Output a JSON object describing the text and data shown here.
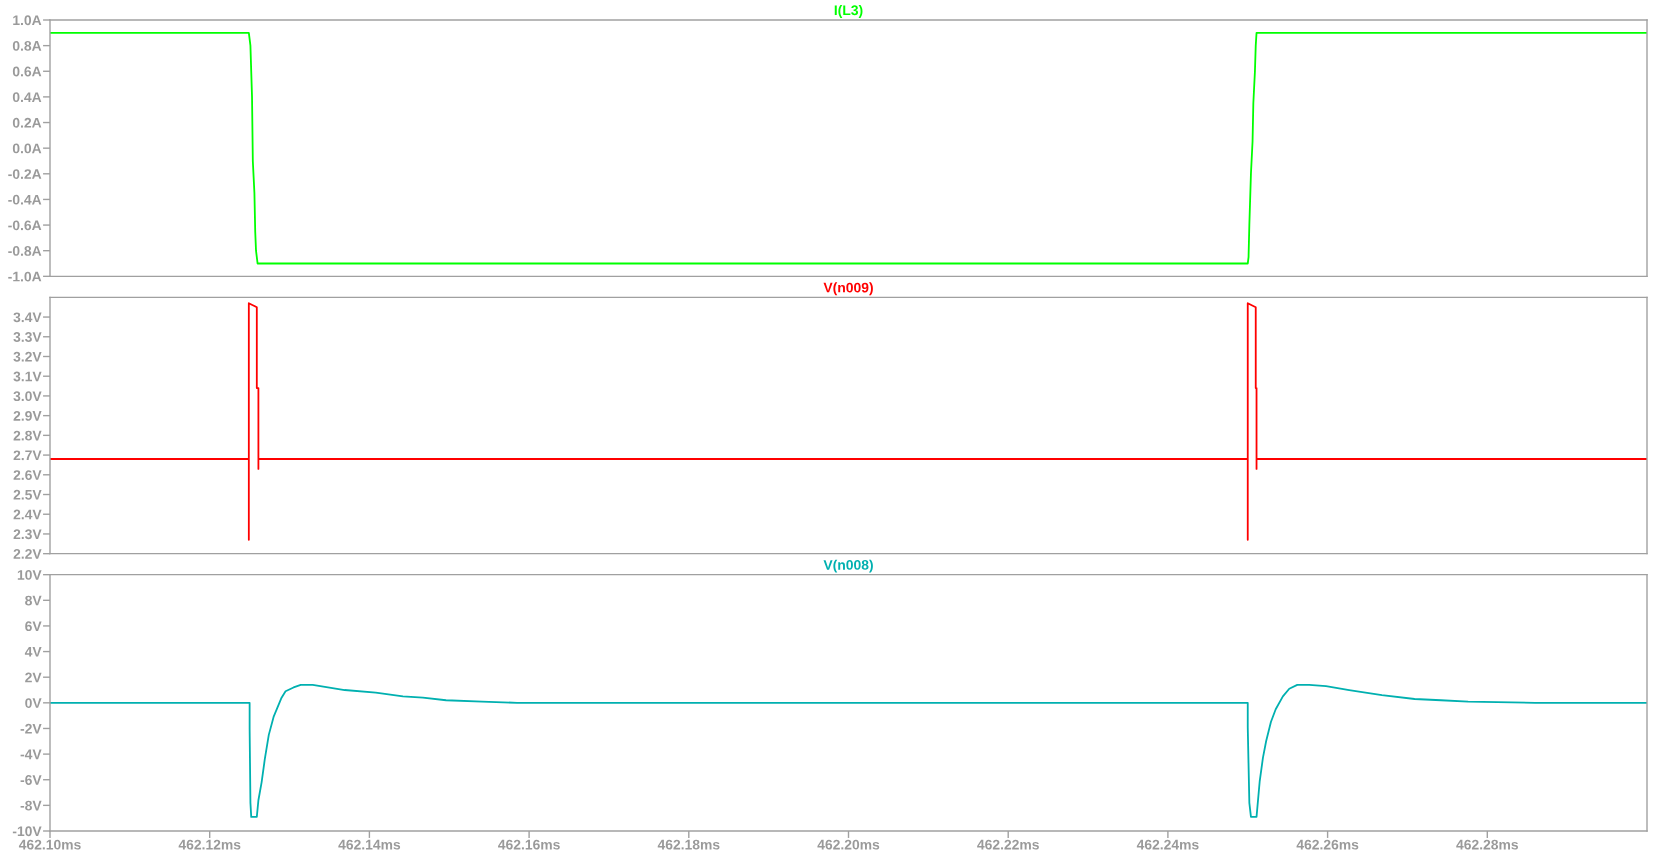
{
  "chart_data": [
    {
      "type": "line",
      "x": [
        462.1,
        462.1249,
        462.125,
        462.1251,
        462.1252,
        462.1253,
        462.1254,
        462.1256,
        462.1257,
        462.1258,
        462.126,
        462.25,
        462.2501,
        462.2502,
        462.2504,
        462.2506,
        462.2507,
        462.2509,
        462.251,
        462.2511,
        462.3
      ],
      "series": [
        {
          "name": "I(L3)",
          "color": "#00ff00",
          "values": [
            0.9,
            0.9,
            0.85,
            0.8,
            0.6,
            0.4,
            -0.1,
            -0.35,
            -0.65,
            -0.8,
            -0.9,
            -0.9,
            -0.85,
            -0.6,
            -0.2,
            0.05,
            0.35,
            0.6,
            0.8,
            0.9,
            0.9
          ]
        }
      ],
      "xlim": [
        462.1,
        462.3
      ],
      "ylim": [
        -1.0,
        1.0
      ],
      "yticks": [
        {
          "value": -1.0,
          "label": "-1.0A"
        },
        {
          "value": -0.8,
          "label": "-0.8A"
        },
        {
          "value": -0.6,
          "label": "-0.6A"
        },
        {
          "value": -0.4,
          "label": "-0.4A"
        },
        {
          "value": -0.2,
          "label": "-0.2A"
        },
        {
          "value": 0.0,
          "label": "0.0A"
        },
        {
          "value": 0.2,
          "label": "0.2A"
        },
        {
          "value": 0.4,
          "label": "0.4A"
        },
        {
          "value": 0.6,
          "label": "0.6A"
        },
        {
          "value": 0.8,
          "label": "0.8A"
        },
        {
          "value": 1.0,
          "label": "1.0A"
        }
      ],
      "tick_labels": "y",
      "legend": "top"
    },
    {
      "type": "line",
      "x": [
        462.1,
        462.1249,
        462.1249,
        462.1249,
        462.1254,
        462.1259,
        462.1259,
        462.1261,
        462.1261,
        462.1261,
        462.25,
        462.25,
        462.25,
        462.2505,
        462.251,
        462.251,
        462.2511,
        462.2511,
        462.2511,
        462.3
      ],
      "series": [
        {
          "name": "V(n009)",
          "color": "#ff0000",
          "values": [
            2.68,
            2.68,
            2.27,
            3.47,
            3.46,
            3.45,
            3.04,
            3.04,
            2.63,
            2.68,
            2.68,
            2.27,
            3.47,
            3.46,
            3.45,
            3.04,
            3.04,
            2.63,
            2.68,
            2.68
          ]
        }
      ],
      "xlim": [
        462.1,
        462.3
      ],
      "ylim": [
        2.2,
        3.5
      ],
      "yticks": [
        {
          "value": 2.2,
          "label": "2.2V"
        },
        {
          "value": 2.3,
          "label": "2.3V"
        },
        {
          "value": 2.4,
          "label": "2.4V"
        },
        {
          "value": 2.5,
          "label": "2.5V"
        },
        {
          "value": 2.6,
          "label": "2.6V"
        },
        {
          "value": 2.7,
          "label": "2.7V"
        },
        {
          "value": 2.8,
          "label": "2.8V"
        },
        {
          "value": 2.9,
          "label": "2.9V"
        },
        {
          "value": 3.0,
          "label": "3.0V"
        },
        {
          "value": 3.1,
          "label": "3.1V"
        },
        {
          "value": 3.2,
          "label": "3.2V"
        },
        {
          "value": 3.3,
          "label": "3.3V"
        },
        {
          "value": 3.4,
          "label": "3.4V"
        }
      ],
      "tick_labels": "y",
      "legend": "top"
    },
    {
      "type": "line",
      "x": [
        462.1,
        462.125,
        462.125,
        462.1251,
        462.1252,
        462.1259,
        462.1261,
        462.1265,
        462.1269,
        462.1274,
        462.128,
        462.129,
        462.1295,
        462.1305,
        462.1314,
        462.1329,
        462.1369,
        462.1408,
        462.1442,
        462.1467,
        462.1496,
        462.1541,
        462.1585,
        462.25,
        462.25,
        462.2502,
        462.2504,
        462.2511,
        462.2515,
        462.2519,
        462.2523,
        462.2529,
        462.2535,
        462.2544,
        462.2552,
        462.2562,
        462.2577,
        462.2598,
        462.2627,
        462.2668,
        462.2709,
        462.2742,
        462.2776,
        462.286,
        462.3
      ],
      "series": [
        {
          "name": "V(n008)",
          "color": "#00b0b0",
          "values": [
            0.0,
            0.0,
            -2.0,
            -7.8,
            -8.9,
            -8.9,
            -7.6,
            -6.2,
            -4.4,
            -2.5,
            -1.1,
            0.4,
            0.9,
            1.2,
            1.4,
            1.4,
            1.0,
            0.8,
            0.5,
            0.4,
            0.2,
            0.1,
            0.0,
            0.0,
            -1.9,
            -7.8,
            -8.9,
            -8.9,
            -6.1,
            -4.3,
            -3.0,
            -1.5,
            -0.5,
            0.5,
            1.1,
            1.4,
            1.4,
            1.3,
            1.0,
            0.6,
            0.3,
            0.2,
            0.1,
            0.0,
            0.0
          ]
        }
      ],
      "xlim": [
        462.1,
        462.3
      ],
      "ylim": [
        -10,
        10
      ],
      "xticks": [
        {
          "value": 462.1,
          "label": "462.10ms"
        },
        {
          "value": 462.12,
          "label": "462.12ms"
        },
        {
          "value": 462.14,
          "label": "462.14ms"
        },
        {
          "value": 462.16,
          "label": "462.16ms"
        },
        {
          "value": 462.18,
          "label": "462.18ms"
        },
        {
          "value": 462.2,
          "label": "462.20ms"
        },
        {
          "value": 462.22,
          "label": "462.22ms"
        },
        {
          "value": 462.24,
          "label": "462.24ms"
        },
        {
          "value": 462.26,
          "label": "462.26ms"
        },
        {
          "value": 462.28,
          "label": "462.28ms"
        }
      ],
      "yticks": [
        {
          "value": -10,
          "label": "-10V"
        },
        {
          "value": -8,
          "label": "-8V"
        },
        {
          "value": -6,
          "label": "-6V"
        },
        {
          "value": -4,
          "label": "-4V"
        },
        {
          "value": -2,
          "label": "-2V"
        },
        {
          "value": 0,
          "label": "0V"
        },
        {
          "value": 2,
          "label": "2V"
        },
        {
          "value": 4,
          "label": "4V"
        },
        {
          "value": 6,
          "label": "6V"
        },
        {
          "value": 8,
          "label": "8V"
        },
        {
          "value": 10,
          "label": "10V"
        }
      ],
      "legend": "top"
    }
  ]
}
